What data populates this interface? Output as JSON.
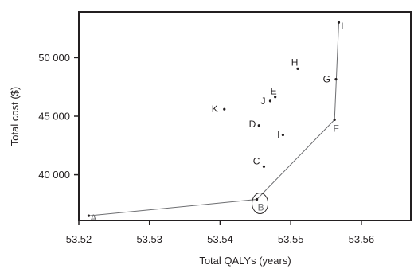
{
  "chart_data": {
    "type": "scatter",
    "xlabel": "Total QALYs (years)",
    "ylabel": "Total cost ($)",
    "xlim": [
      53.52,
      53.567
    ],
    "ylim": [
      36100,
      53900
    ],
    "xticks": [
      {
        "value": 53.52,
        "label": "53.52"
      },
      {
        "value": 53.53,
        "label": "53.53"
      },
      {
        "value": 53.54,
        "label": "53.54"
      },
      {
        "value": 53.55,
        "label": "53.55"
      },
      {
        "value": 53.56,
        "label": "53.56"
      }
    ],
    "yticks": [
      {
        "value": 40000,
        "label": "40 000"
      },
      {
        "value": 45000,
        "label": "45 000"
      },
      {
        "value": 50000,
        "label": "50 000"
      }
    ],
    "points": [
      {
        "label": "A",
        "x": 53.5214,
        "y": 36500,
        "frontier": true
      },
      {
        "label": "B",
        "x": 53.5452,
        "y": 37900,
        "frontier": true,
        "highlighted": true
      },
      {
        "label": "C",
        "x": 53.5462,
        "y": 40700,
        "frontier": false
      },
      {
        "label": "D",
        "x": 53.5455,
        "y": 44200,
        "frontier": false
      },
      {
        "label": "E",
        "x": 53.5478,
        "y": 46650,
        "frontier": false
      },
      {
        "label": "F",
        "x": 53.5562,
        "y": 44700,
        "frontier": true
      },
      {
        "label": "G",
        "x": 53.5564,
        "y": 48150,
        "frontier": false
      },
      {
        "label": "H",
        "x": 53.551,
        "y": 49050,
        "frontier": false
      },
      {
        "label": "I",
        "x": 53.5489,
        "y": 43400,
        "frontier": false
      },
      {
        "label": "J",
        "x": 53.5471,
        "y": 46300,
        "frontier": false
      },
      {
        "label": "K",
        "x": 53.5406,
        "y": 45600,
        "frontier": false
      },
      {
        "label": "L",
        "x": 53.5568,
        "y": 53000,
        "frontier": true
      }
    ],
    "frontier_order": [
      "A",
      "B",
      "F",
      "L"
    ],
    "grid": false,
    "legend": "none"
  }
}
